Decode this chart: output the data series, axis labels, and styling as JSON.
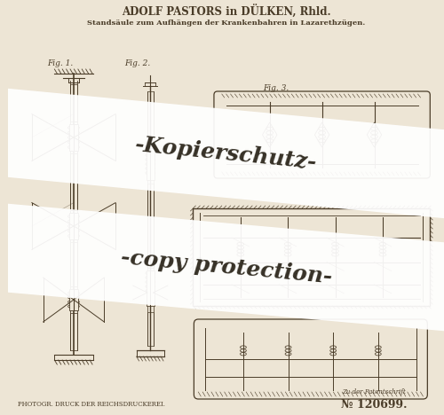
{
  "paper_color": "#ede5d5",
  "line_color": "#4a3c28",
  "title_line1": "ADOLF PASTORS in DÜLKEN, Rhld.",
  "title_line2": "Standsäule zum Aufhängen der Krankenbahren in Lazarethzügen.",
  "watermark1": "-Kopierschutz-",
  "watermark2": "-copy protection-",
  "footer_left": "PHOTOGR. DRUCK DER REICHSDRUCKEREI.",
  "footer_right_label": "Zu der Patentschrift",
  "footer_right_num": "№ 120699.",
  "fig1_label": "Fig. 1.",
  "fig2_label": "Fig. 2.",
  "fig3_label": "Fig. 3.",
  "wm_text_color": "#1a1408",
  "wm_bg_color": "#ffffff"
}
